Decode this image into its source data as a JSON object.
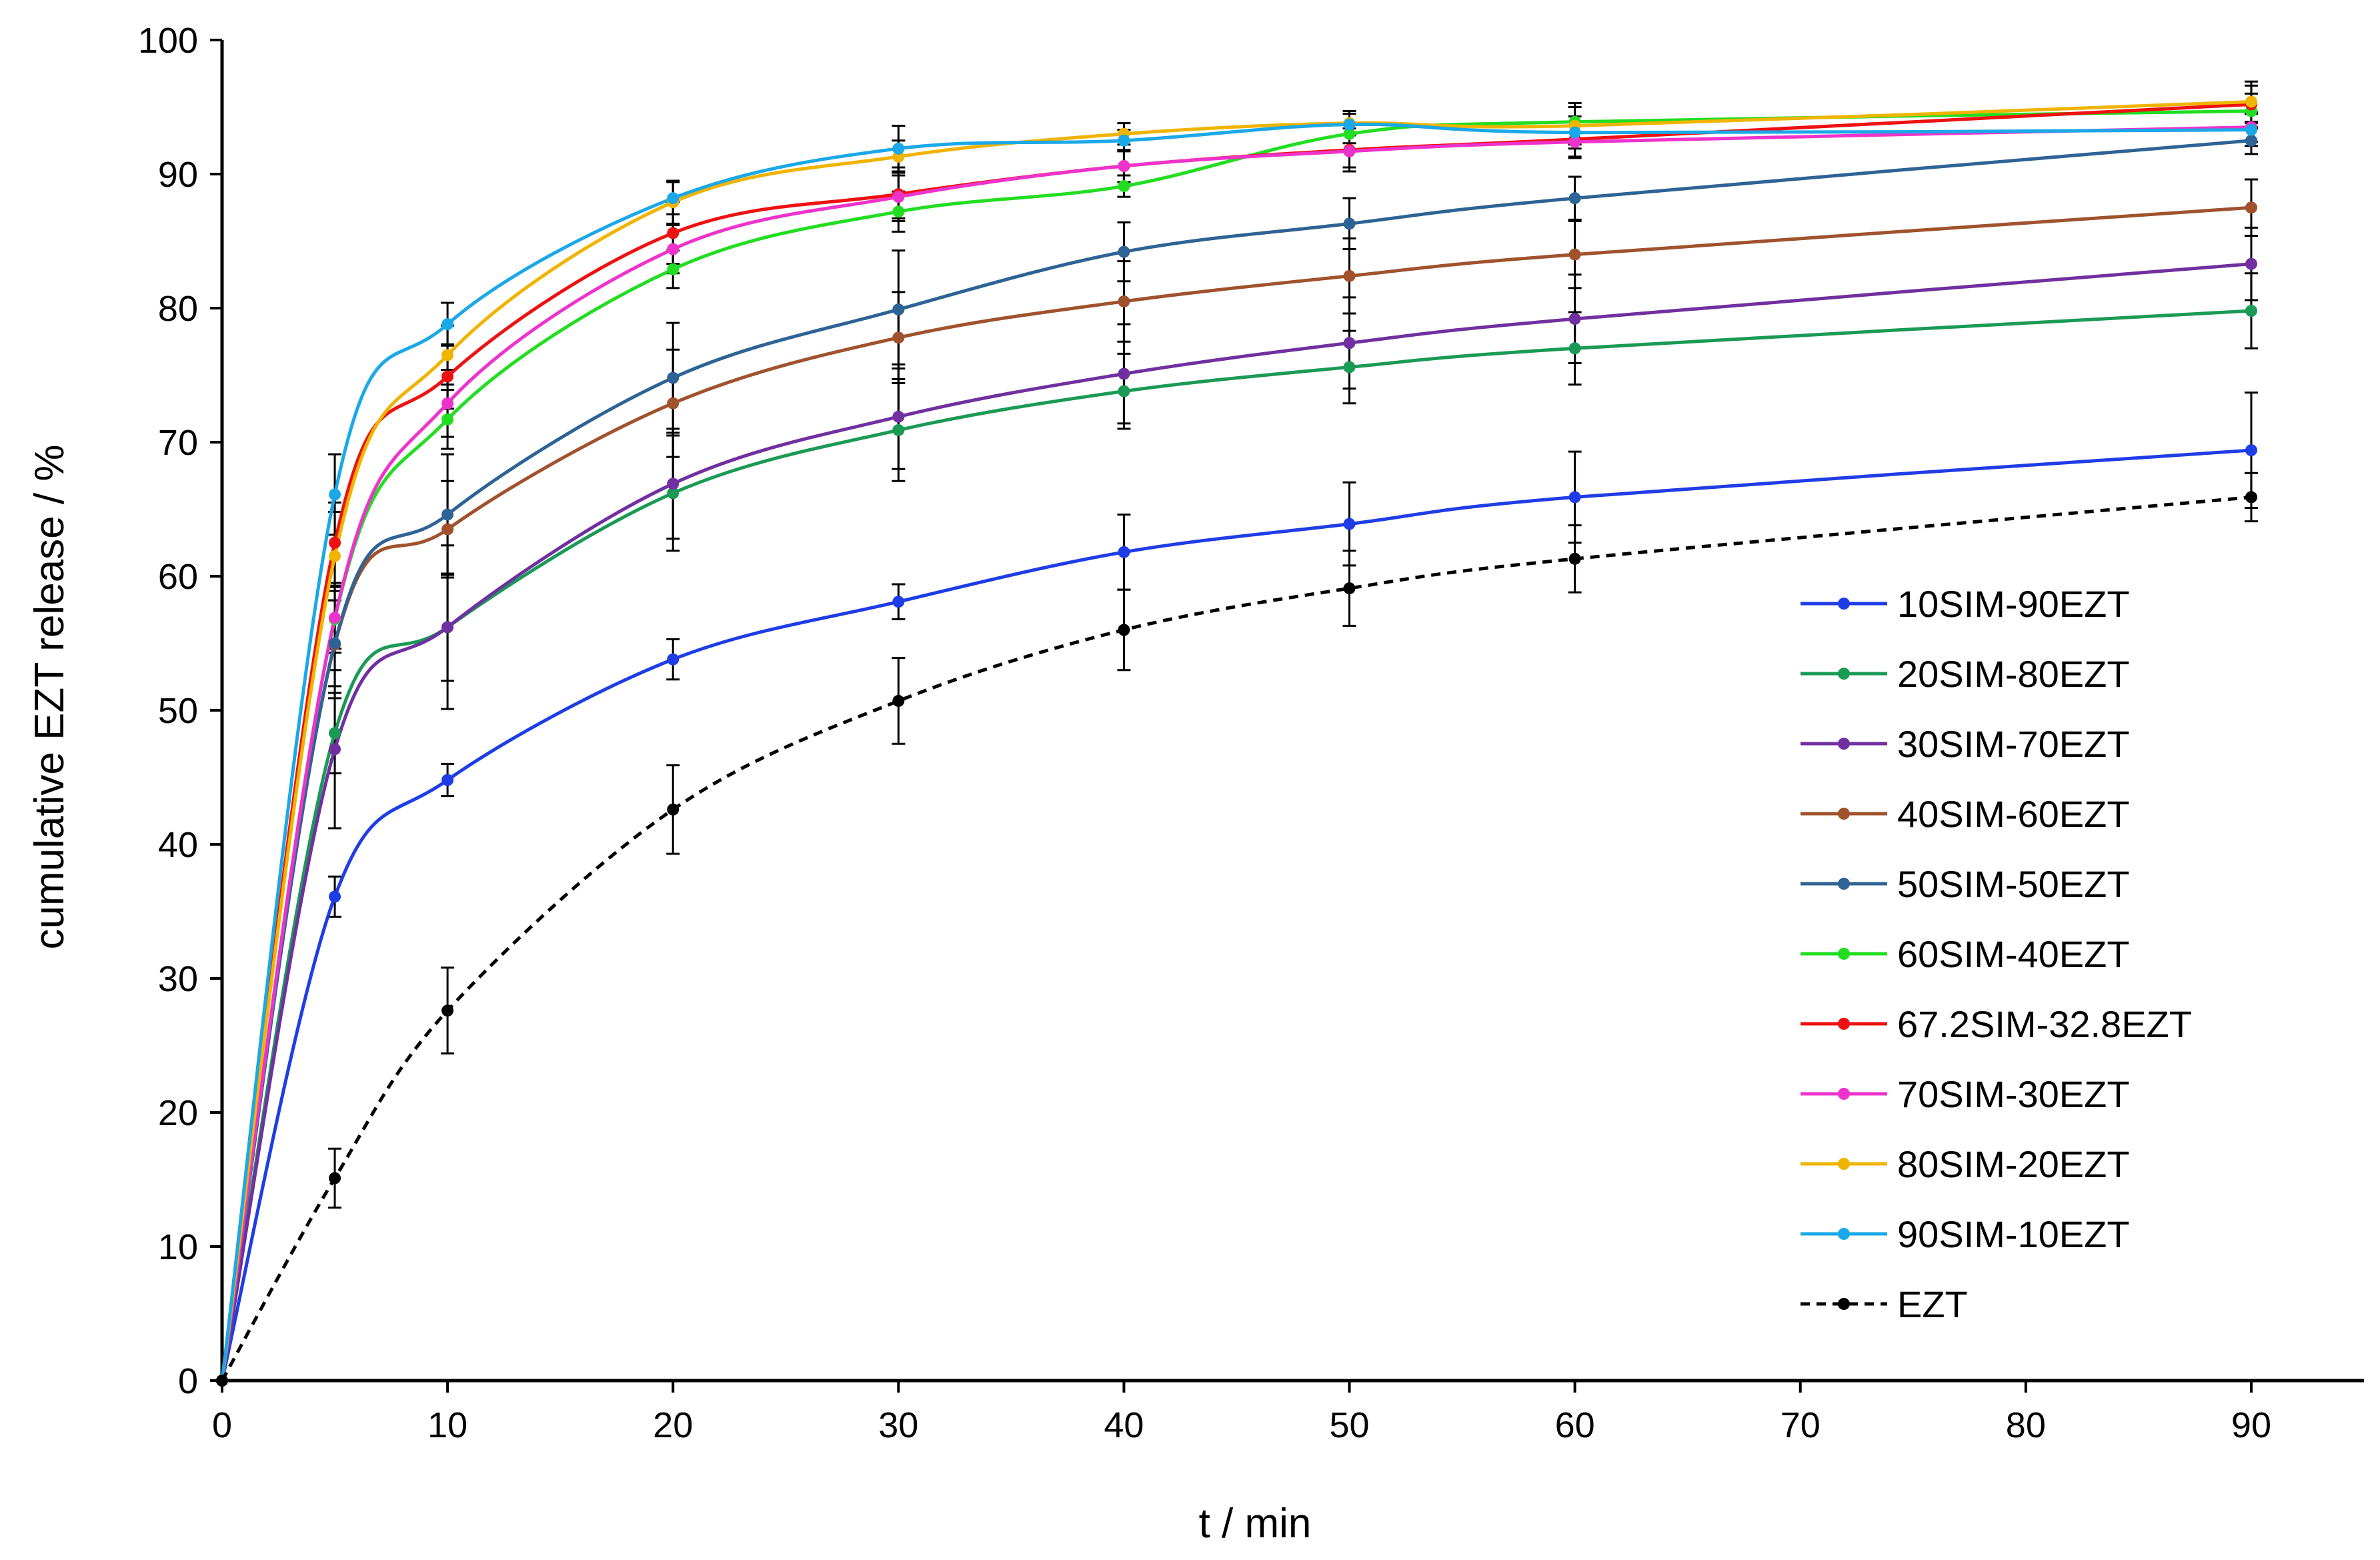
{
  "chart_data": {
    "type": "line",
    "title": "",
    "xlabel": "t / min",
    "ylabel": "cumulative  EZT release / %",
    "xlim": [
      0,
      95
    ],
    "ylim": [
      0,
      100
    ],
    "x_ticks": [
      0,
      10,
      20,
      30,
      40,
      50,
      60,
      70,
      80,
      90
    ],
    "y_ticks": [
      0,
      10,
      20,
      30,
      40,
      50,
      60,
      70,
      80,
      90,
      100
    ],
    "x": [
      0,
      5,
      10,
      20,
      30,
      40,
      50,
      60,
      90
    ],
    "legend_position": "right",
    "series": [
      {
        "name": "10SIM-90EZT",
        "color": "#1f3de6",
        "dashed": false,
        "values": [
          0,
          36.1,
          44.8,
          53.8,
          58.1,
          61.8,
          63.9,
          65.9,
          69.4
        ],
        "errors": [
          0,
          1.5,
          1.2,
          1.5,
          1.3,
          2.8,
          3.1,
          3.4,
          4.3
        ]
      },
      {
        "name": "20SIM-80EZT",
        "color": "#1a9a55",
        "dashed": false,
        "values": [
          0,
          48.3,
          56.2,
          66.2,
          70.9,
          73.8,
          75.6,
          77.0,
          79.8
        ],
        "errors": [
          0,
          3.0,
          4.0,
          4.3,
          3.8,
          2.8,
          2.7,
          2.7,
          2.8
        ]
      },
      {
        "name": "30SIM-70EZT",
        "color": "#7030a0",
        "dashed": false,
        "values": [
          0,
          47.1,
          56.2,
          66.9,
          71.9,
          75.1,
          77.4,
          79.2,
          83.3
        ],
        "errors": [
          0,
          5.9,
          6.1,
          4.1,
          3.9,
          3.7,
          3.4,
          3.3,
          2.7
        ]
      },
      {
        "name": "40SIM-60EZT",
        "color": "#a0522d",
        "dashed": false,
        "values": [
          0,
          54.9,
          63.5,
          72.9,
          77.8,
          80.5,
          82.4,
          84.0,
          87.5
        ],
        "errors": [
          0,
          4.0,
          3.6,
          4.0,
          3.4,
          3.0,
          2.8,
          2.5,
          2.1
        ]
      },
      {
        "name": "50SIM-50EZT",
        "color": "#2e6395",
        "dashed": false,
        "values": [
          0,
          55.0,
          64.6,
          74.8,
          79.9,
          84.2,
          86.3,
          88.2,
          92.5
        ],
        "errors": [
          0,
          3.2,
          4.5,
          4.1,
          4.4,
          2.2,
          1.9,
          1.6,
          1.0
        ]
      },
      {
        "name": "60SIM-40EZT",
        "color": "#22dd22",
        "dashed": false,
        "values": [
          0,
          56.8,
          71.7,
          82.9,
          87.2,
          89.1,
          93.0,
          93.9,
          94.7
        ],
        "errors": [
          0,
          2.5,
          2.2,
          1.4,
          1.5,
          0.8,
          0.7,
          1.4,
          1.3
        ]
      },
      {
        "name": "67.2SIM-32.8EZT",
        "color": "#ee1111",
        "dashed": false,
        "values": [
          0,
          62.5,
          74.9,
          85.6,
          88.5,
          90.6,
          91.8,
          92.6,
          95.2
        ],
        "errors": [
          0,
          3.0,
          2.4,
          2.3,
          2.0,
          1.2,
          1.6,
          1.3,
          1.4
        ]
      },
      {
        "name": "70SIM-30EZT",
        "color": "#ee33cc",
        "dashed": false,
        "values": [
          0,
          56.9,
          72.9,
          84.4,
          88.3,
          90.6,
          91.7,
          92.4,
          93.5
        ],
        "errors": [
          0,
          2.3,
          2.5,
          1.8,
          1.6,
          1.2,
          1.2,
          1.2,
          1.1
        ]
      },
      {
        "name": "80SIM-20EZT",
        "color": "#f0b400",
        "dashed": false,
        "values": [
          0,
          61.5,
          76.5,
          87.9,
          91.3,
          93.0,
          93.8,
          93.6,
          95.4
        ],
        "errors": [
          0,
          3.3,
          2.2,
          1.6,
          1.2,
          0.8,
          0.9,
          1.4,
          1.5
        ]
      },
      {
        "name": "90SIM-10EZT",
        "color": "#1aa8e8",
        "dashed": false,
        "values": [
          0,
          66.1,
          78.8,
          88.2,
          91.9,
          92.5,
          93.7,
          93.1,
          93.3
        ],
        "errors": [
          0,
          3.0,
          1.6,
          1.2,
          1.7,
          0.8,
          0.8,
          1.2,
          1.2
        ]
      },
      {
        "name": "EZT",
        "color": "#000000",
        "dashed": true,
        "values": [
          0,
          15.1,
          27.6,
          42.6,
          50.7,
          56.0,
          59.1,
          61.3,
          65.9
        ],
        "errors": [
          0,
          2.2,
          3.2,
          3.3,
          3.2,
          3.0,
          2.8,
          2.5,
          1.8
        ]
      }
    ]
  }
}
